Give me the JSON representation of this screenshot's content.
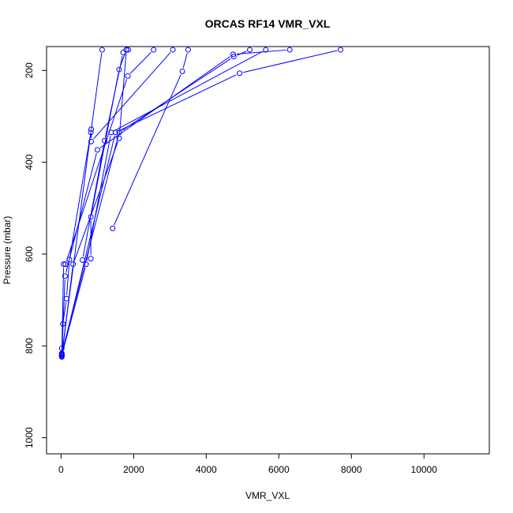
{
  "chart_data": {
    "type": "line",
    "title": "ORCAS RF14 VMR_VXL",
    "xlabel": "VMR_VXL",
    "ylabel": "Pressure (mbar)",
    "xlim": [
      -400,
      11800
    ],
    "ylim": [
      1035,
      148
    ],
    "y_inverted": true,
    "x_ticks": [
      0,
      2000,
      4000,
      6000,
      8000,
      10000
    ],
    "x_tick_labels": [
      "0",
      "2000",
      "4000",
      "6000",
      "8000",
      "10000"
    ],
    "y_ticks": [
      200,
      400,
      600,
      800,
      1000
    ],
    "y_tick_labels": [
      "200",
      "400",
      "600",
      "800",
      "1000"
    ],
    "grid": false,
    "legend": "none",
    "color": "#0000ff",
    "series": [
      {
        "points": [
          [
            20,
            805
          ],
          [
            50,
            752
          ],
          [
            150,
            697
          ],
          [
            230,
            612
          ],
          [
            820,
            335
          ],
          [
            1130,
            155
          ]
        ]
      },
      {
        "points": [
          [
            820,
            610
          ],
          [
            820,
            519
          ],
          [
            1600,
            198
          ],
          [
            1800,
            155
          ]
        ]
      },
      {
        "points": [
          [
            1420,
            544
          ],
          [
            3340,
            202
          ],
          [
            3500,
            155
          ]
        ]
      },
      {
        "points": [
          [
            20,
            818
          ],
          [
            70,
            622
          ],
          [
            120,
            622
          ],
          [
            1840,
            212
          ],
          [
            2550,
            155
          ]
        ]
      },
      {
        "points": [
          [
            20,
            820
          ],
          [
            1500,
            335
          ],
          [
            4920,
            206
          ],
          [
            7700,
            155
          ]
        ]
      },
      {
        "points": [
          [
            20,
            822
          ],
          [
            110,
            648
          ],
          [
            1000,
            373
          ],
          [
            4740,
            165
          ],
          [
            6300,
            155
          ]
        ]
      },
      {
        "points": [
          [
            20,
            824
          ],
          [
            330,
            622
          ],
          [
            1600,
            348
          ],
          [
            1800,
            155
          ]
        ]
      },
      {
        "points": [
          [
            590,
            613
          ],
          [
            1200,
            353
          ],
          [
            1710,
            161
          ],
          [
            1850,
            155
          ]
        ]
      },
      {
        "points": [
          [
            20,
            820
          ],
          [
            690,
            622
          ],
          [
            1380,
            335
          ],
          [
            5640,
            155
          ]
        ]
      },
      {
        "points": [
          [
            20,
            818
          ],
          [
            830,
            328
          ],
          [
            830,
            355
          ],
          [
            3080,
            155
          ]
        ]
      },
      {
        "points": [
          [
            20,
            816
          ],
          [
            1600,
            335
          ],
          [
            4760,
            170
          ],
          [
            5200,
            155
          ]
        ]
      }
    ]
  }
}
